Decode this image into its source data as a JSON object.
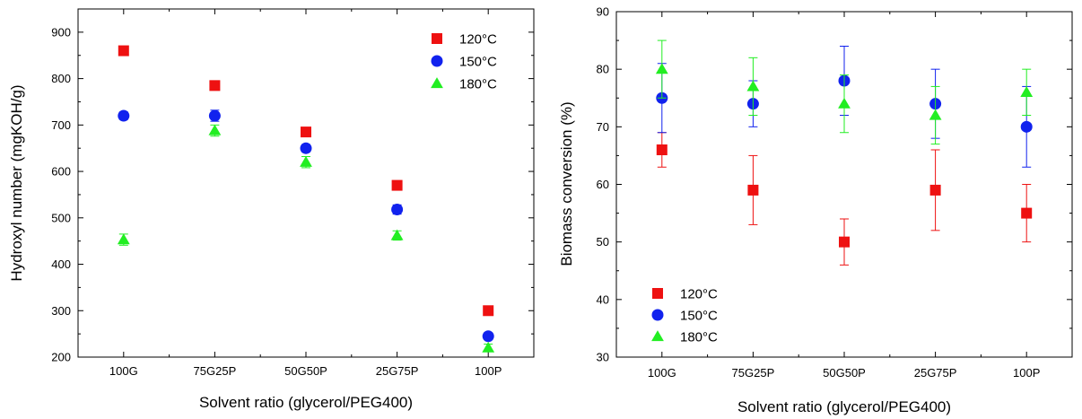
{
  "chart_data": [
    {
      "type": "scatter",
      "title": "",
      "xlabel": "Solvent ratio (glycerol/PEG400)",
      "ylabel": "Hydroxyl number (mgKOH/g)",
      "categories": [
        "100G",
        "75G25P",
        "50G50P",
        "25G75P",
        "100P"
      ],
      "ylim": [
        200,
        950
      ],
      "yticks": [
        200,
        300,
        400,
        500,
        600,
        700,
        800,
        900
      ],
      "legend_position": "top-right",
      "grid": false,
      "series": [
        {
          "name": "120°C",
          "marker": "square",
          "color": "#ee1111",
          "values": [
            860,
            785,
            685,
            570,
            300
          ],
          "errors": [
            0,
            0,
            0,
            0,
            0
          ]
        },
        {
          "name": "150°C",
          "marker": "circle",
          "color": "#1122ee",
          "values": [
            720,
            720,
            650,
            518,
            245
          ],
          "errors": [
            8,
            12,
            8,
            10,
            6
          ]
        },
        {
          "name": "180°C",
          "marker": "triangle",
          "color": "#22ee22",
          "values": [
            453,
            688,
            620,
            462,
            220
          ],
          "errors": [
            12,
            12,
            12,
            10,
            8
          ]
        }
      ]
    },
    {
      "type": "scatter",
      "title": "",
      "xlabel": "Solvent ratio (glycerol/PEG400)",
      "ylabel": "Biomass conversion (%)",
      "categories": [
        "100G",
        "75G25P",
        "50G50P",
        "25G75P",
        "100P"
      ],
      "ylim": [
        30,
        90
      ],
      "yticks": [
        30,
        40,
        50,
        60,
        70,
        80,
        90
      ],
      "legend_position": "bottom-left",
      "grid": false,
      "series": [
        {
          "name": "120°C",
          "marker": "square",
          "color": "#ee1111",
          "values": [
            66,
            59,
            50,
            59,
            55
          ],
          "errors": [
            3,
            6,
            4,
            7,
            5
          ]
        },
        {
          "name": "150°C",
          "marker": "circle",
          "color": "#1122ee",
          "values": [
            75,
            74,
            78,
            74,
            70
          ],
          "errors": [
            6,
            4,
            6,
            6,
            7
          ]
        },
        {
          "name": "180°C",
          "marker": "triangle",
          "color": "#22ee22",
          "values": [
            80,
            77,
            74,
            72,
            76
          ],
          "errors": [
            5,
            5,
            5,
            5,
            4
          ]
        }
      ]
    }
  ]
}
